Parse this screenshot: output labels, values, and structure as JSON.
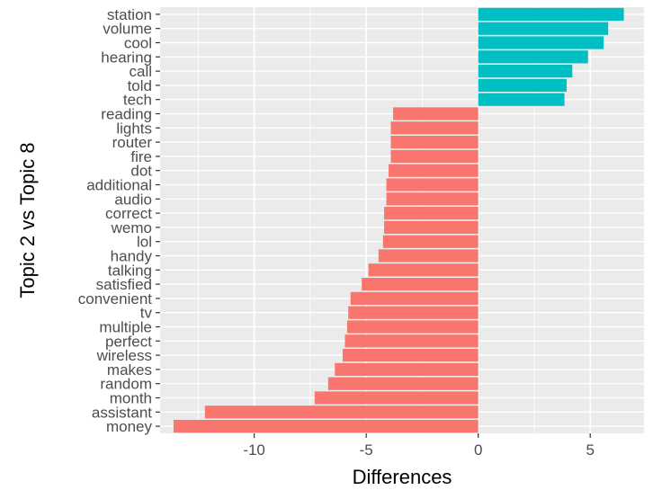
{
  "chart_data": {
    "type": "bar",
    "orientation": "horizontal",
    "xlabel": "Differences",
    "ylabel": "Topic 2 vs Topic 8",
    "xlim": [
      -14.2,
      7.4
    ],
    "xticks": [
      -10,
      -5,
      0,
      5
    ],
    "grid": true,
    "colors": {
      "positive": "#00BFC4",
      "negative": "#F8766D",
      "panel": "#EBEBEB",
      "grid": "#FFFFFF"
    },
    "categories": [
      "station",
      "volume",
      "cool",
      "hearing",
      "call",
      "told",
      "tech",
      "reading",
      "lights",
      "router",
      "fire",
      "dot",
      "additional",
      "audio",
      "correct",
      "wemo",
      "lol",
      "handy",
      "talking",
      "satisfied",
      "convenient",
      "tv",
      "multiple",
      "perfect",
      "wireless",
      "makes",
      "random",
      "month",
      "assistant",
      "money"
    ],
    "values": [
      6.5,
      5.8,
      5.6,
      4.9,
      4.2,
      3.95,
      3.85,
      -3.8,
      -3.9,
      -3.9,
      -3.9,
      -4.0,
      -4.1,
      -4.1,
      -4.2,
      -4.2,
      -4.25,
      -4.45,
      -4.9,
      -5.2,
      -5.7,
      -5.8,
      -5.85,
      -5.95,
      -6.05,
      -6.4,
      -6.7,
      -7.3,
      -12.2,
      -13.6
    ]
  }
}
